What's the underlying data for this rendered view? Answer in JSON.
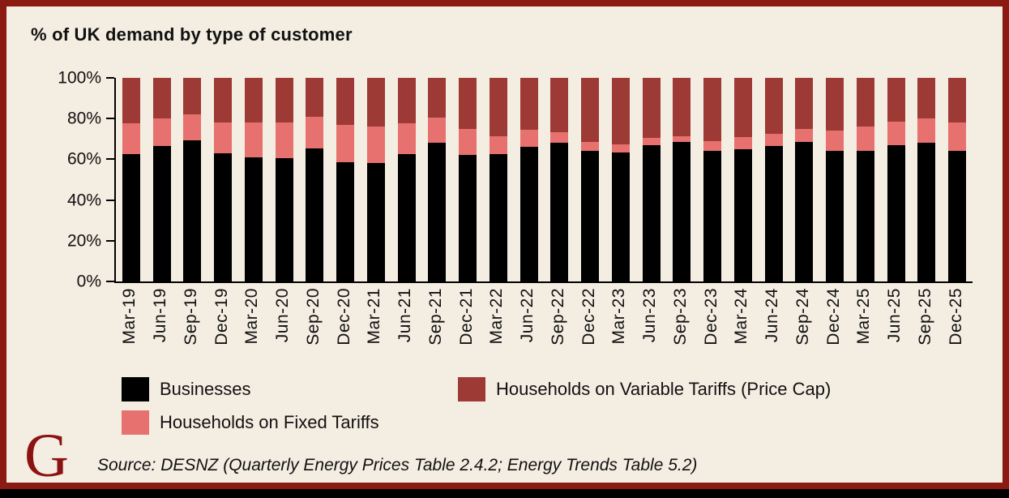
{
  "title": "% of UK demand by type of customer",
  "source_note": "Source: DESNZ (Quarterly Energy Prices Table 2.4.2; Energy Trends Table 5.2)",
  "logo_letter": "G",
  "colors": {
    "background": "#f4ede2",
    "frame_border": "#8b1a13",
    "businesses": "#000000",
    "fixed_tariffs": "#e7716e",
    "variable_tariffs": "#9d3a36",
    "logo": "#8b1413",
    "axis": "#000000"
  },
  "legend": {
    "items": [
      {
        "label": "Businesses",
        "color": "#000000"
      },
      {
        "label": "Households on Variable Tariffs (Price Cap)",
        "color": "#9d3a36"
      },
      {
        "label": "Households on Fixed Tariffs",
        "color": "#e7716e"
      }
    ]
  },
  "chart_data": {
    "type": "bar",
    "stacked": true,
    "title": "% of UK demand by type of customer",
    "xlabel": "",
    "ylabel": "",
    "ylim": [
      0,
      100
    ],
    "grid": false,
    "legend_position": "bottom",
    "y_ticks": [
      "0%",
      "20%",
      "40%",
      "60%",
      "80%",
      "100%"
    ],
    "categories": [
      "Mar-19",
      "Jun-19",
      "Sep-19",
      "Dec-19",
      "Mar-20",
      "Jun-20",
      "Sep-20",
      "Dec-20",
      "Mar-21",
      "Jun-21",
      "Sep-21",
      "Dec-21",
      "Mar-22",
      "Jun-22",
      "Sep-22",
      "Dec-22",
      "Mar-23",
      "Jun-23",
      "Sep-23",
      "Dec-23",
      "Mar-24",
      "Jun-24",
      "Sep-24",
      "Dec-24",
      "Mar-25",
      "Jun-25",
      "Sep-25",
      "Dec-25"
    ],
    "series": [
      {
        "name": "Businesses",
        "color": "#000000",
        "values": [
          62.5,
          66.5,
          69.5,
          63,
          61,
          60.5,
          65.5,
          58.5,
          58,
          62.5,
          68,
          62,
          62.5,
          66,
          68,
          64,
          63.5,
          67,
          68.5,
          64,
          65,
          66.5,
          68.5,
          64,
          64,
          67,
          68,
          64
        ]
      },
      {
        "name": "Households on Fixed Tariffs",
        "color": "#e7716e",
        "values": [
          15,
          13.5,
          12.5,
          15,
          17,
          17.5,
          15.5,
          18.5,
          18,
          15,
          12.5,
          13,
          9,
          8.5,
          5.5,
          4.5,
          4,
          3.5,
          3,
          5,
          6,
          6,
          6.5,
          10,
          12,
          11.5,
          12,
          14
        ]
      },
      {
        "name": "Households on Variable Tariffs (Price Cap)",
        "color": "#9d3a36",
        "values": [
          22.5,
          20,
          18,
          22,
          22,
          22,
          19,
          23,
          24,
          22.5,
          19.5,
          25,
          28.5,
          25.5,
          26.5,
          31.5,
          32.5,
          29.5,
          28.5,
          31,
          29,
          27.5,
          25,
          26,
          24,
          21.5,
          20,
          22
        ]
      }
    ]
  }
}
